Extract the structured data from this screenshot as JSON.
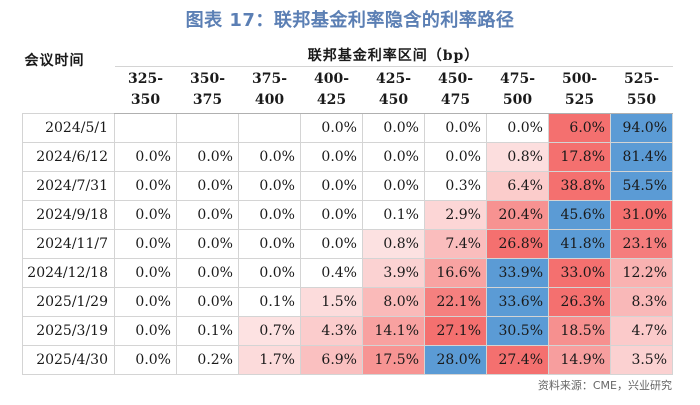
{
  "title": "图表 17：联邦基金利率隐含的利率路径",
  "header": {
    "meeting_label": "会议时间",
    "group_label": "联邦基金利率区间（bp）",
    "ranges": [
      [
        "325-",
        "350"
      ],
      [
        "350-",
        "375"
      ],
      [
        "375-",
        "400"
      ],
      [
        "400-",
        "425"
      ],
      [
        "425-",
        "450"
      ],
      [
        "450-",
        "475"
      ],
      [
        "475-",
        "500"
      ],
      [
        "500-",
        "525"
      ],
      [
        "525-",
        "550"
      ]
    ]
  },
  "rows": [
    {
      "date": "2024/5/1",
      "values": [
        "",
        "",
        "",
        "0.0%",
        "0.0%",
        "0.0%",
        "0.0%",
        "6.0%",
        "94.0%"
      ]
    },
    {
      "date": "2024/6/12",
      "values": [
        "0.0%",
        "0.0%",
        "0.0%",
        "0.0%",
        "0.0%",
        "0.0%",
        "0.8%",
        "17.8%",
        "81.4%"
      ]
    },
    {
      "date": "2024/7/31",
      "values": [
        "0.0%",
        "0.0%",
        "0.0%",
        "0.0%",
        "0.0%",
        "0.3%",
        "6.4%",
        "38.8%",
        "54.5%"
      ]
    },
    {
      "date": "2024/9/18",
      "values": [
        "0.0%",
        "0.0%",
        "0.0%",
        "0.0%",
        "0.1%",
        "2.9%",
        "20.4%",
        "45.6%",
        "31.0%"
      ]
    },
    {
      "date": "2024/11/7",
      "values": [
        "0.0%",
        "0.0%",
        "0.0%",
        "0.0%",
        "0.8%",
        "7.4%",
        "26.8%",
        "41.8%",
        "23.1%"
      ]
    },
    {
      "date": "2024/12/18",
      "values": [
        "0.0%",
        "0.0%",
        "0.0%",
        "0.4%",
        "3.9%",
        "16.6%",
        "33.9%",
        "33.0%",
        "12.2%"
      ]
    },
    {
      "date": "2025/1/29",
      "values": [
        "0.0%",
        "0.0%",
        "0.1%",
        "1.5%",
        "8.0%",
        "22.1%",
        "33.6%",
        "26.3%",
        "8.3%"
      ]
    },
    {
      "date": "2025/3/19",
      "values": [
        "0.0%",
        "0.1%",
        "0.7%",
        "4.3%",
        "14.1%",
        "27.1%",
        "30.5%",
        "18.5%",
        "4.7%"
      ]
    },
    {
      "date": "2025/4/30",
      "values": [
        "0.0%",
        "0.2%",
        "1.7%",
        "6.9%",
        "17.5%",
        "28.0%",
        "27.4%",
        "14.9%",
        "3.5%"
      ]
    }
  ],
  "colors": {
    "max_cell": "#5b9bd5",
    "heat_scale_high": "#f4706f",
    "heat_scale_low": "#fde8e8",
    "title": "#5b7fb4"
  },
  "source": "资料来源：CME，兴业研究"
}
